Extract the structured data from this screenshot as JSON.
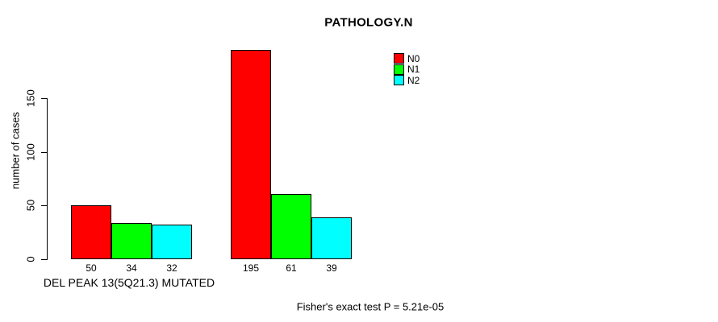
{
  "background": "#ffffff",
  "axis_color": "#000000",
  "chart_data": {
    "type": "bar",
    "title": "PATHOLOGY.N",
    "ylabel": "number of cases",
    "xlabel": "",
    "group_labels": [
      "DEL PEAK 13(5Q21.3) MUTATED",
      ""
    ],
    "series": [
      {
        "name": "N0",
        "color": "#ff0000",
        "values": [
          50,
          195
        ]
      },
      {
        "name": "N1",
        "color": "#00ff00",
        "values": [
          34,
          61
        ]
      },
      {
        "name": "N2",
        "color": "#00ffff",
        "values": [
          32,
          39
        ]
      }
    ],
    "bar_value_labels": [
      [
        50,
        34,
        32
      ],
      [
        195,
        61,
        39
      ]
    ],
    "yticks": [
      0,
      50,
      100,
      150
    ],
    "ylim": [
      0,
      150
    ],
    "grid": false,
    "legend": {
      "position": "inside-top-right",
      "entries": [
        "N0",
        "N1",
        "N2"
      ]
    },
    "annotation": "Fisher's exact test P = 5.21e-05"
  }
}
